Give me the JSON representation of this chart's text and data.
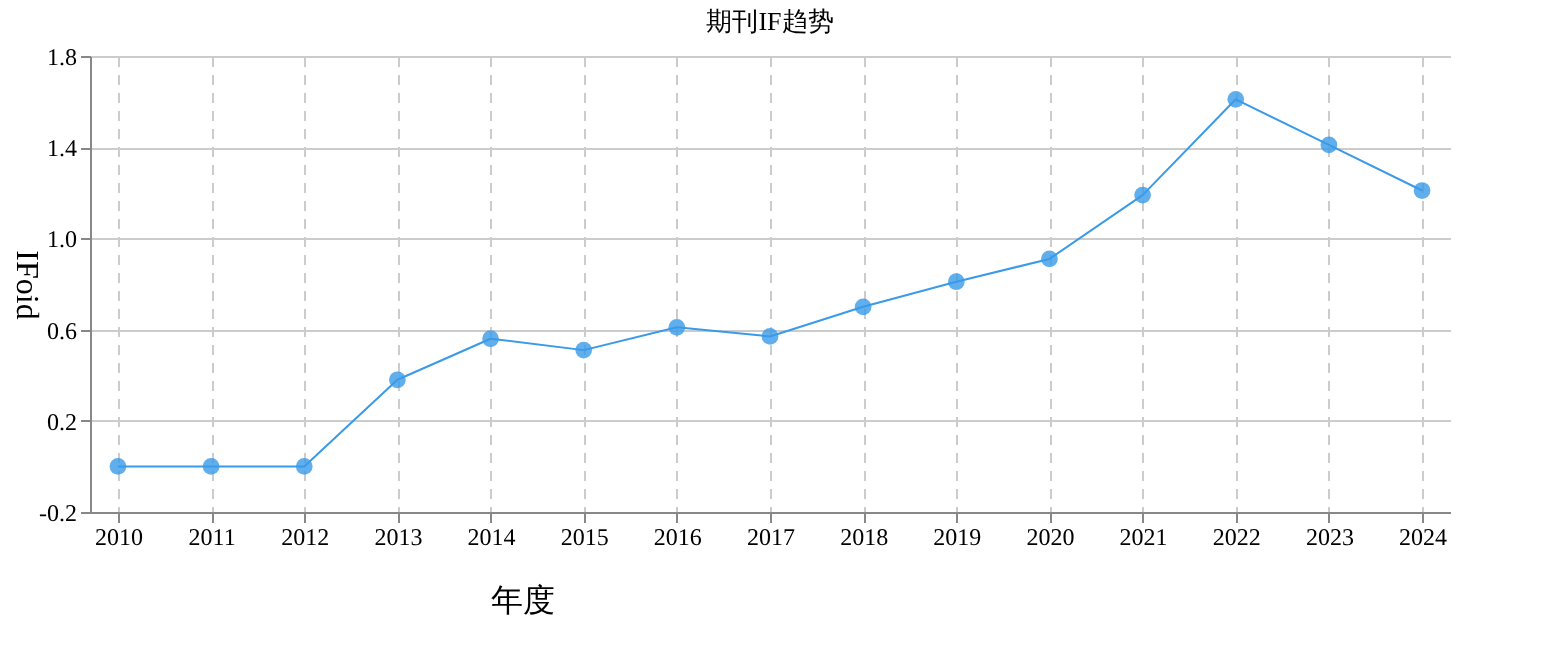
{
  "chart_data": {
    "type": "line",
    "title": "期刊IF趋势",
    "xlabel": "年度",
    "ylabel": "IFoid",
    "categories": [
      "2010",
      "2011",
      "2012",
      "2013",
      "2014",
      "2015",
      "2016",
      "2017",
      "2018",
      "2019",
      "2020",
      "2021",
      "2022",
      "2023",
      "2024"
    ],
    "series": [
      {
        "color": "#3a9ae8",
        "values": [
          0.0,
          0.0,
          0.0,
          0.38,
          0.56,
          0.51,
          0.61,
          0.57,
          0.7,
          0.81,
          0.91,
          1.19,
          1.61,
          1.41,
          1.21
        ]
      }
    ],
    "ylim": [
      -0.2,
      1.8
    ],
    "yticks": [
      -0.2,
      0.2,
      0.6,
      {
        "value": 1.0,
        "label": "1.0"
      },
      1.4,
      1.8
    ],
    "grid": true,
    "marker": "circle",
    "line_style": "solid"
  }
}
